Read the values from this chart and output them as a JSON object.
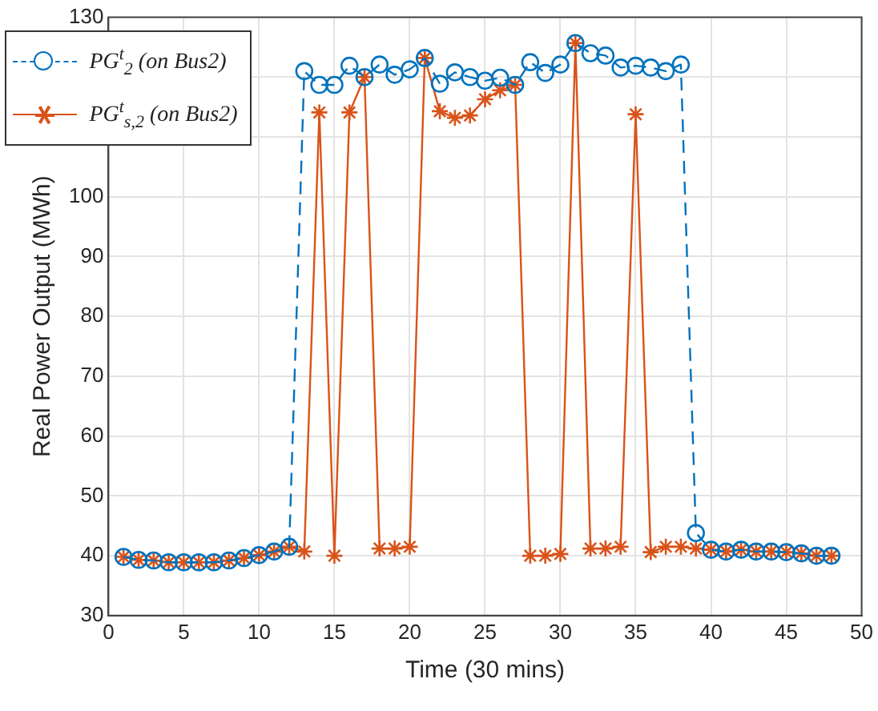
{
  "chart_data": {
    "type": "line",
    "xlabel": "Time (30 mins)",
    "ylabel": "Real Power Output (MWh)",
    "x": [
      1,
      2,
      3,
      4,
      5,
      6,
      7,
      8,
      9,
      10,
      11,
      12,
      13,
      14,
      15,
      16,
      17,
      18,
      19,
      20,
      21,
      22,
      23,
      24,
      25,
      26,
      27,
      28,
      29,
      30,
      31,
      32,
      33,
      34,
      35,
      36,
      37,
      38,
      39,
      40,
      41,
      42,
      43,
      44,
      45,
      46,
      47,
      48
    ],
    "series": [
      {
        "name": "PG$^{t}$$_{2}$ (on Bus2)",
        "color": "#0072bd",
        "marker": "circle",
        "line_style": "dashed",
        "values": [
          39.8,
          39.3,
          39.2,
          38.9,
          38.9,
          38.9,
          38.9,
          39.2,
          39.6,
          40.1,
          40.7,
          41.5,
          121.0,
          118.7,
          118.7,
          121.9,
          120.0,
          122.1,
          120.4,
          121.3,
          123.2,
          118.9,
          120.8,
          120.0,
          119.4,
          119.9,
          118.7,
          122.5,
          120.7,
          122.1,
          125.7,
          124.0,
          123.6,
          121.6,
          121.9,
          121.6,
          121.0,
          122.1,
          43.8,
          41.0,
          40.7,
          41.0,
          40.7,
          40.7,
          40.6,
          40.4,
          40.0,
          40.0
        ]
      },
      {
        "name": "PG$^{t}$$_{s,2}$ (on Bus2)",
        "color": "#d95319",
        "marker": "cross",
        "line_style": "solid",
        "values": [
          39.8,
          39.3,
          39.2,
          38.9,
          38.9,
          38.9,
          38.9,
          39.2,
          39.6,
          40.1,
          40.7,
          41.5,
          40.7,
          114.1,
          40.0,
          114.1,
          120.0,
          41.2,
          41.2,
          41.5,
          123.2,
          114.3,
          113.2,
          113.6,
          116.3,
          117.8,
          118.7,
          40.0,
          40.0,
          40.3,
          125.7,
          41.2,
          41.2,
          41.5,
          113.8,
          40.6,
          41.5,
          41.5,
          41.2,
          41.0,
          40.7,
          41.0,
          40.7,
          40.7,
          40.6,
          40.4,
          40.0,
          40.0
        ]
      }
    ],
    "xlim": [
      0,
      50
    ],
    "xticks": [
      0,
      5,
      10,
      15,
      20,
      25,
      30,
      35,
      40,
      45,
      50
    ],
    "ylim": [
      30,
      130
    ],
    "yticks": [
      30,
      40,
      50,
      60,
      70,
      80,
      90,
      100,
      {
        "value": 110,
        "label": null
      },
      {
        "value": 120,
        "label": null
      },
      130
    ],
    "grid": true,
    "legend": "top left"
  }
}
